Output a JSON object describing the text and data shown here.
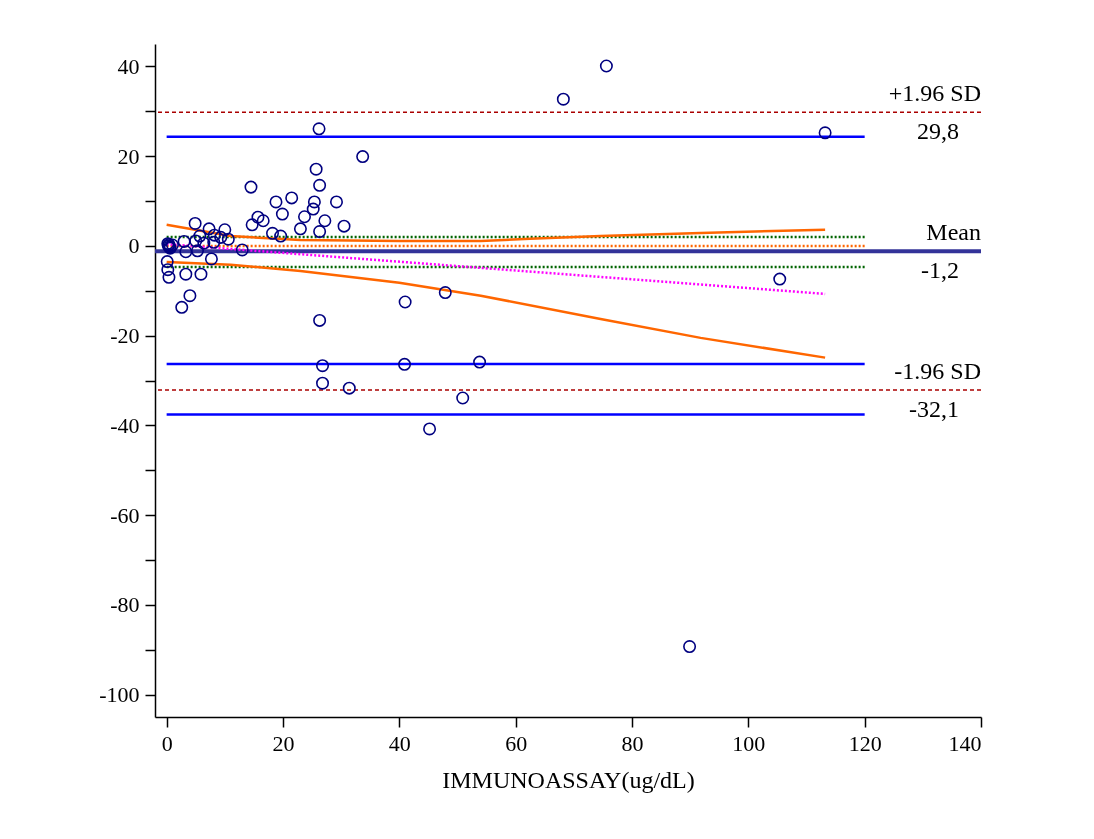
{
  "chart_data": {
    "type": "scatter",
    "xlabel": "IMMUNOASSAY(ug/dL)",
    "xlim": [
      -2,
      140
    ],
    "ylim": [
      -105,
      45
    ],
    "xticks": [
      0,
      20,
      40,
      60,
      80,
      100,
      120,
      140
    ],
    "yticks": [
      {
        "value": -100,
        "label": "-100"
      },
      {
        "value": -90,
        "label": null
      },
      {
        "value": -80,
        "label": "-80"
      },
      {
        "value": -70,
        "label": null
      },
      {
        "value": -60,
        "label": "-60"
      },
      {
        "value": -50,
        "label": null
      },
      {
        "value": -40,
        "label": "-40"
      },
      {
        "value": -30,
        "label": null
      },
      {
        "value": -20,
        "label": "-20"
      },
      {
        "value": -10,
        "label": null
      },
      0,
      {
        "value": 10,
        "label": null
      },
      20,
      {
        "value": 30,
        "label": null
      },
      40
    ],
    "grid": false,
    "ref_lines": [
      {
        "axis": "y",
        "value": 29.8,
        "label": "+1.96 SD",
        "color": "#aa0000",
        "line_style": "dashed"
      },
      {
        "axis": "y",
        "value": -1.2,
        "label": "Mean",
        "color": "#333399"
      },
      {
        "axis": "y",
        "value": -32.1,
        "label": "-1.96 SD",
        "color": "#aa0000",
        "line_style": "dashed"
      }
    ],
    "series": [
      {
        "type": "line",
        "color": "#0000ff",
        "line_style": "solid",
        "x": [
          0,
          120
        ],
        "values": [
          24.3,
          24.3
        ]
      },
      {
        "type": "line",
        "color": "#006400",
        "line_style": "dotted",
        "x": [
          0,
          120
        ],
        "values": [
          2.0,
          2.0
        ]
      },
      {
        "type": "line",
        "color": "#ff6600",
        "line_style": "dotted",
        "x": [
          0,
          120
        ],
        "values": [
          0,
          0
        ]
      },
      {
        "type": "line",
        "color": "#006400",
        "line_style": "dotted",
        "x": [
          0,
          120
        ],
        "values": [
          -4.7,
          -4.7
        ]
      },
      {
        "type": "line",
        "color": "#0000ff",
        "line_style": "solid",
        "x": [
          0,
          120
        ],
        "values": [
          -26.3,
          -26.3
        ]
      },
      {
        "type": "line",
        "color": "#0000ff",
        "line_style": "solid",
        "x": [
          0,
          120
        ],
        "values": [
          -37.6,
          -37.6
        ]
      },
      {
        "type": "line",
        "color": "#ff00ff",
        "line_style": "dotted",
        "x": [
          0,
          113.2
        ],
        "values": [
          0.4,
          -10.7
        ]
      },
      {
        "type": "line",
        "color": "#ff6600",
        "line_style": "solid",
        "x": [
          0,
          11,
          23,
          40,
          54,
          62.5,
          74.6,
          91.8,
          113.2
        ],
        "values": [
          4.7,
          2.2,
          1.3,
          1.1,
          1.1,
          1.6,
          2.2,
          2.9,
          3.6
        ]
      },
      {
        "type": "line",
        "color": "#ff6600",
        "line_style": "solid",
        "x": [
          0,
          11,
          23,
          40,
          54,
          74.6,
          91.8,
          113.2
        ],
        "values": [
          -3.6,
          -4.2,
          -5.6,
          -8.2,
          -11.1,
          -16.3,
          -20.5,
          -24.9
        ]
      },
      {
        "color": "#000080",
        "marker": "circle",
        "x": [
          26.2,
          33.7,
          25.7,
          26.3,
          14.5,
          18.8,
          21.5,
          25.4,
          29.2,
          25.2,
          19.9,
          23.7,
          15.7,
          16.6,
          27.2,
          30.5,
          14.7,
          4.9,
          23.0,
          26.3,
          18.2,
          19.6,
          7.3,
          10.0,
          5.7,
          8.2,
          10.6,
          9.3,
          3.0,
          5.0,
          6.4,
          8.1,
          13.0,
          3.3,
          5.3,
          7.7,
          0.2,
          0.3,
          0.5,
          0.4,
          0.6,
          1.0,
          0.1,
          0.2,
          0.4,
          3.3,
          5.9,
          4.0,
          2.6,
          26.3,
          105.4,
          41.0,
          47.9,
          26.8,
          40.9,
          53.8,
          26.8,
          31.4,
          50.9,
          45.2,
          68.2,
          75.6,
          113.2,
          89.9
        ],
        "values": [
          26.1,
          19.9,
          17.1,
          13.5,
          13.1,
          9.8,
          10.7,
          9.8,
          9.8,
          8.2,
          7.1,
          6.5,
          6.4,
          5.6,
          5.6,
          4.4,
          4.7,
          5.0,
          3.8,
          3.2,
          2.8,
          2.2,
          3.8,
          3.6,
          2.2,
          2.4,
          1.5,
          1.9,
          1.0,
          1.1,
          0.6,
          0.8,
          -0.9,
          -1.3,
          -1.1,
          -2.9,
          0.5,
          0,
          -0.2,
          0.3,
          -0.5,
          0.2,
          -3.5,
          -5.3,
          -7.0,
          -6.3,
          -6.3,
          -11.1,
          -13.7,
          -16.6,
          -7.4,
          -12.5,
          -10.4,
          -26.7,
          -26.4,
          -25.9,
          -30.6,
          -31.7,
          -33.9,
          -40.8,
          32.7,
          40.1,
          25.2,
          -89.3
        ]
      }
    ],
    "annotations": [
      "29,8",
      "-1,2",
      "-32,1"
    ]
  }
}
